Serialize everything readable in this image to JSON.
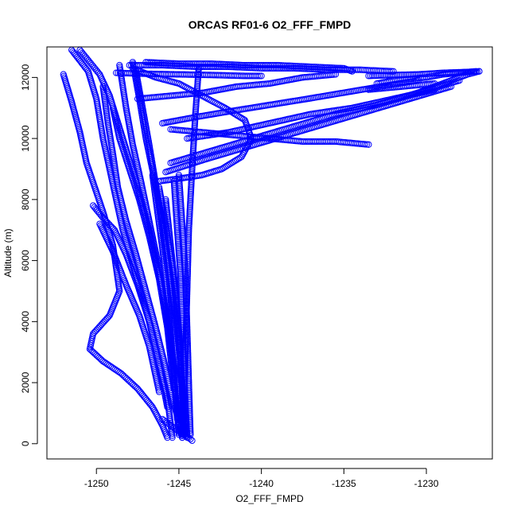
{
  "chart_data": {
    "type": "scatter",
    "title": "ORCAS RF01-6 O2_FFF_FMPD",
    "xlabel": "O2_FFF_FMPD",
    "ylabel": "Altitude (m)",
    "xlim": [
      -1253,
      -1226
    ],
    "ylim": [
      -500,
      13000
    ],
    "x_ticks": [
      -1250,
      -1245,
      -1240,
      -1235,
      -1230
    ],
    "y_ticks": [
      0,
      2000,
      4000,
      6000,
      8000,
      10000,
      12000
    ],
    "marker": "open-circle",
    "color": "#0000ff",
    "grid": false,
    "legend": "none",
    "series": [
      {
        "x": [
          -1251.5,
          -1250.5,
          -1250.0,
          -1249.6,
          -1249.0,
          -1248.4,
          -1247.6,
          -1246.8,
          -1246.2,
          -1245.7,
          -1245.4
        ],
        "y": [
          12900,
          12200,
          11300,
          10000,
          8500,
          7000,
          5500,
          4000,
          2600,
          1500,
          200
        ]
      },
      {
        "x": [
          -1252.0,
          -1251.5,
          -1251.0,
          -1250.6,
          -1250.1,
          -1249.6,
          -1249.0,
          -1248.6,
          -1249.2,
          -1250.2,
          -1250.4,
          -1249.6,
          -1248.5,
          -1247.5,
          -1246.6,
          -1246.0,
          -1245.7
        ],
        "y": [
          12100,
          11200,
          10200,
          9200,
          8400,
          7600,
          6500,
          5000,
          4200,
          3600,
          3100,
          2700,
          2300,
          1800,
          1200,
          600,
          200
        ]
      },
      {
        "x": [
          -1251.0,
          -1250.4,
          -1249.8,
          -1249.2,
          -1248.4,
          -1247.6,
          -1246.8,
          -1246.0,
          -1245.4,
          -1245.0
        ],
        "y": [
          12900,
          12500,
          12100,
          11400,
          10000,
          8600,
          7000,
          5000,
          2800,
          300
        ]
      },
      {
        "x": [
          -1249.6,
          -1249.3,
          -1249.0,
          -1248.7,
          -1248.2,
          -1247.6,
          -1247.0,
          -1246.4,
          -1245.9,
          -1245.5,
          -1245.1,
          -1244.8
        ],
        "y": [
          11700,
          10500,
          9500,
          8400,
          7300,
          6200,
          5000,
          3800,
          2700,
          1700,
          900,
          200
        ]
      },
      {
        "x": [
          -1248.6,
          -1248.2,
          -1247.8,
          -1247.3,
          -1246.8,
          -1246.3,
          -1245.9,
          -1245.5,
          -1245.1,
          -1244.8
        ],
        "y": [
          12400,
          11000,
          9800,
          8600,
          7300,
          6000,
          4700,
          3300,
          1900,
          300
        ]
      },
      {
        "x": [
          -1247.8,
          -1247.4,
          -1247.0,
          -1246.5,
          -1246.0,
          -1245.6,
          -1245.2,
          -1244.9,
          -1244.6
        ],
        "y": [
          12500,
          11300,
          10000,
          8700,
          7300,
          5800,
          4200,
          2600,
          300
        ]
      },
      {
        "x": [
          -1250.2,
          -1249.6,
          -1248.9,
          -1248.2,
          -1247.5,
          -1246.8,
          -1246.2,
          -1245.7
        ],
        "y": [
          7800,
          7400,
          7000,
          6200,
          5200,
          4000,
          2600,
          1200
        ]
      },
      {
        "x": [
          -1249.8,
          -1249.0,
          -1248.2,
          -1247.4,
          -1246.8,
          -1246.2
        ],
        "y": [
          7200,
          6300,
          5200,
          4200,
          3200,
          1700
        ]
      },
      {
        "x": [
          -1249.0,
          -1248.6,
          -1248.0,
          -1247.4,
          -1246.8,
          -1246.2,
          -1245.7,
          -1245.3
        ],
        "y": [
          11000,
          10000,
          9000,
          8000,
          6800,
          5400,
          3800,
          1800
        ]
      },
      {
        "x": [
          -1247.6,
          -1247.2,
          -1246.8,
          -1246.4,
          -1246.0,
          -1245.6,
          -1245.3,
          -1245.0
        ],
        "y": [
          12200,
          11000,
          9800,
          8500,
          7000,
          5400,
          3600,
          1500
        ]
      },
      {
        "x": [
          -1246.6,
          -1246.3,
          -1246.0,
          -1245.7,
          -1245.5,
          -1245.3,
          -1245.1
        ],
        "y": [
          8800,
          7600,
          6400,
          5000,
          3600,
          2200,
          800
        ]
      },
      {
        "x": [
          -1246.2,
          -1245.8,
          -1245.4,
          -1245.1,
          -1244.9,
          -1244.8,
          -1244.7
        ],
        "y": [
          8400,
          7200,
          5800,
          4400,
          3000,
          1600,
          300
        ]
      },
      {
        "x": [
          -1243.8,
          -1244.0,
          -1244.2,
          -1244.4,
          -1244.5,
          -1244.6,
          -1244.7,
          -1244.8
        ],
        "y": [
          12300,
          10800,
          9000,
          7000,
          5000,
          3000,
          1200,
          200
        ]
      },
      {
        "x": [
          -1245.3,
          -1245.1,
          -1244.9,
          -1244.8,
          -1244.7,
          -1244.6,
          -1244.5
        ],
        "y": [
          8600,
          7000,
          5500,
          4000,
          2600,
          1200,
          200
        ]
      },
      {
        "x": [
          -1245.0,
          -1244.8,
          -1244.6,
          -1244.5,
          -1244.4,
          -1244.3
        ],
        "y": [
          8800,
          7200,
          5500,
          3800,
          2000,
          300
        ]
      },
      {
        "x": [
          -1245.8,
          -1245.5,
          -1245.2,
          -1245.0,
          -1244.8,
          -1244.6
        ],
        "y": [
          8000,
          6500,
          5000,
          3500,
          2000,
          300
        ]
      },
      {
        "x": [
          -1246.0,
          -1245.5,
          -1245.0,
          -1244.6,
          -1244.3,
          -1244.2
        ],
        "y": [
          800,
          600,
          400,
          250,
          150,
          100
        ]
      },
      {
        "x": [
          -1247.8,
          -1246.4,
          -1245.0,
          -1243.6,
          -1242.2,
          -1241.0,
          -1240.6,
          -1241.2,
          -1242.4,
          -1243.6,
          -1244.8,
          -1246.2
        ],
        "y": [
          12300,
          12000,
          11800,
          11400,
          11000,
          10600,
          10000,
          9400,
          9000,
          8800,
          8700,
          8600
        ]
      },
      {
        "x": [
          -1245.5,
          -1243.0,
          -1240.5,
          -1238.0,
          -1235.5,
          -1233.0,
          -1230.5,
          -1228.0
        ],
        "y": [
          9200,
          9600,
          10000,
          10400,
          10800,
          11100,
          11500,
          11900
        ]
      },
      {
        "x": [
          -1245.8,
          -1243.5,
          -1241.0,
          -1238.5,
          -1236.0,
          -1233.5,
          -1231.0,
          -1228.5
        ],
        "y": [
          8900,
          9300,
          9700,
          10100,
          10500,
          10900,
          11300,
          11700
        ]
      },
      {
        "x": [
          -1246.0,
          -1244.0,
          -1241.8,
          -1239.5,
          -1237.2,
          -1235.0,
          -1232.8,
          -1230.5
        ],
        "y": [
          10500,
          10700,
          10900,
          11100,
          11300,
          11500,
          11700,
          11900
        ]
      },
      {
        "x": [
          -1244.5,
          -1242.0,
          -1239.5,
          -1237.0,
          -1234.5,
          -1232.0,
          -1229.5
        ],
        "y": [
          10000,
          10200,
          10500,
          10800,
          11000,
          11300,
          11600
        ]
      },
      {
        "x": [
          -1247.5,
          -1245.5,
          -1243.5,
          -1241.5,
          -1239.5,
          -1237.5,
          -1235.5
        ],
        "y": [
          11300,
          11400,
          11500,
          11700,
          11800,
          12000,
          12100
        ]
      },
      {
        "x": [
          -1245.5,
          -1243.5,
          -1241.5,
          -1239.5,
          -1237.5,
          -1235.5,
          -1233.5
        ],
        "y": [
          10300,
          10200,
          10100,
          10000,
          9900,
          9900,
          9800
        ]
      },
      {
        "x": [
          -1248.0,
          -1246.0,
          -1244.0,
          -1242.0,
          -1240.0,
          -1238.0,
          -1236.0,
          -1234.0,
          -1232.0
        ],
        "y": [
          12400,
          12400,
          12350,
          12350,
          12300,
          12300,
          12250,
          12250,
          12200
        ]
      },
      {
        "x": [
          -1247.0,
          -1245.0,
          -1243.0,
          -1241.0,
          -1239.0,
          -1237.0,
          -1235.0,
          -1234.5
        ],
        "y": [
          12500,
          12450,
          12450,
          12400,
          12400,
          12350,
          12300,
          12200
        ]
      },
      {
        "x": [
          -1248.8,
          -1247.0,
          -1245.0,
          -1243.0,
          -1241.0,
          -1240.0
        ],
        "y": [
          12150,
          12120,
          12100,
          12080,
          12050,
          12050
        ]
      },
      {
        "x": [
          -1233.5,
          -1232.0,
          -1230.5,
          -1229.0,
          -1227.5,
          -1226.8
        ],
        "y": [
          12050,
          12080,
          12100,
          12150,
          12180,
          12200
        ]
      },
      {
        "x": [
          -1233.0,
          -1232.0,
          -1231.0,
          -1230.0,
          -1229.0,
          -1228.0,
          -1227.0
        ],
        "y": [
          11800,
          11900,
          11950,
          12000,
          12100,
          12150,
          12200
        ]
      },
      {
        "x": [
          -1233.5,
          -1232.5,
          -1231.5,
          -1230.5,
          -1229.5
        ],
        "y": [
          11600,
          11650,
          11700,
          11750,
          11800
        ]
      },
      {
        "x": [
          -1230.5,
          -1229.0,
          -1227.5,
          -1226.8
        ],
        "y": [
          11500,
          11800,
          12100,
          12200
        ]
      }
    ]
  }
}
